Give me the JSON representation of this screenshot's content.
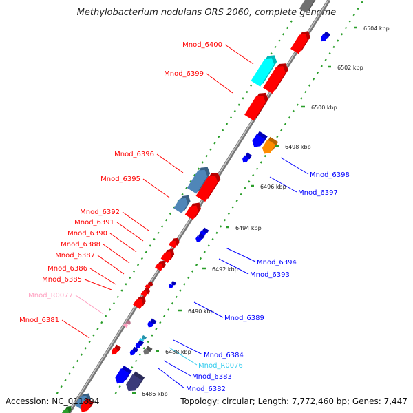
{
  "header": {
    "title": "Methylobacterium nodulans ORS 2060, complete genome"
  },
  "footer": {
    "accession": "Accession: NC_011894",
    "topology": "Topology: circular; Length: 7,772,460 bp; Genes: 7,447"
  },
  "colors": {
    "forward_gene": "#ff0000",
    "reverse_gene": "#0000ff",
    "cyan_gene": "#00ffff",
    "orange_gene": "#ff8c00",
    "steelblue_gene": "#4f86b8",
    "navy_gene": "#3a3a7a",
    "gray_gene": "#707070",
    "rna_pink": "#ff9fc0",
    "rna_cyan": "#33ccee",
    "tick_green": "#2b9e2b",
    "backbone": "#8a8a8a"
  },
  "kbp_ticks": [
    "6504 kbp",
    "6502 kbp",
    "6500 kbp",
    "6498 kbp",
    "6496 kbp",
    "6494 kbp",
    "6492 kbp",
    "6490 kbp",
    "6488 kbp",
    "6486 kbp"
  ],
  "left_labels": [
    {
      "text": "Mnod_6400",
      "color": "#ff0000"
    },
    {
      "text": "Mnod_6399",
      "color": "#ff0000"
    },
    {
      "text": "Mnod_6396",
      "color": "#ff0000"
    },
    {
      "text": "Mnod_6395",
      "color": "#ff0000"
    },
    {
      "text": "Mnod_6392",
      "color": "#ff0000"
    },
    {
      "text": "Mnod_6391",
      "color": "#ff0000"
    },
    {
      "text": "Mnod_6390",
      "color": "#ff0000"
    },
    {
      "text": "Mnod_6388",
      "color": "#ff0000"
    },
    {
      "text": "Mnod_6387",
      "color": "#ff0000"
    },
    {
      "text": "Mnod_6386",
      "color": "#ff0000"
    },
    {
      "text": "Mnod_6385",
      "color": "#ff0000"
    },
    {
      "text": "Mnod_R0077",
      "color": "#ff9fc0"
    },
    {
      "text": "Mnod_6381",
      "color": "#ff0000"
    }
  ],
  "right_labels": [
    {
      "text": "Mnod_6398",
      "color": "#0000ff"
    },
    {
      "text": "Mnod_6397",
      "color": "#0000ff"
    },
    {
      "text": "Mnod_6394",
      "color": "#0000ff"
    },
    {
      "text": "Mnod_6393",
      "color": "#0000ff"
    },
    {
      "text": "Mnod_6389",
      "color": "#0000ff"
    },
    {
      "text": "Mnod_6384",
      "color": "#0000ff"
    },
    {
      "text": "Mnod_R0076",
      "color": "#33ccee"
    },
    {
      "text": "Mnod_6383",
      "color": "#0000ff"
    },
    {
      "text": "Mnod_6382",
      "color": "#0000ff"
    }
  ]
}
